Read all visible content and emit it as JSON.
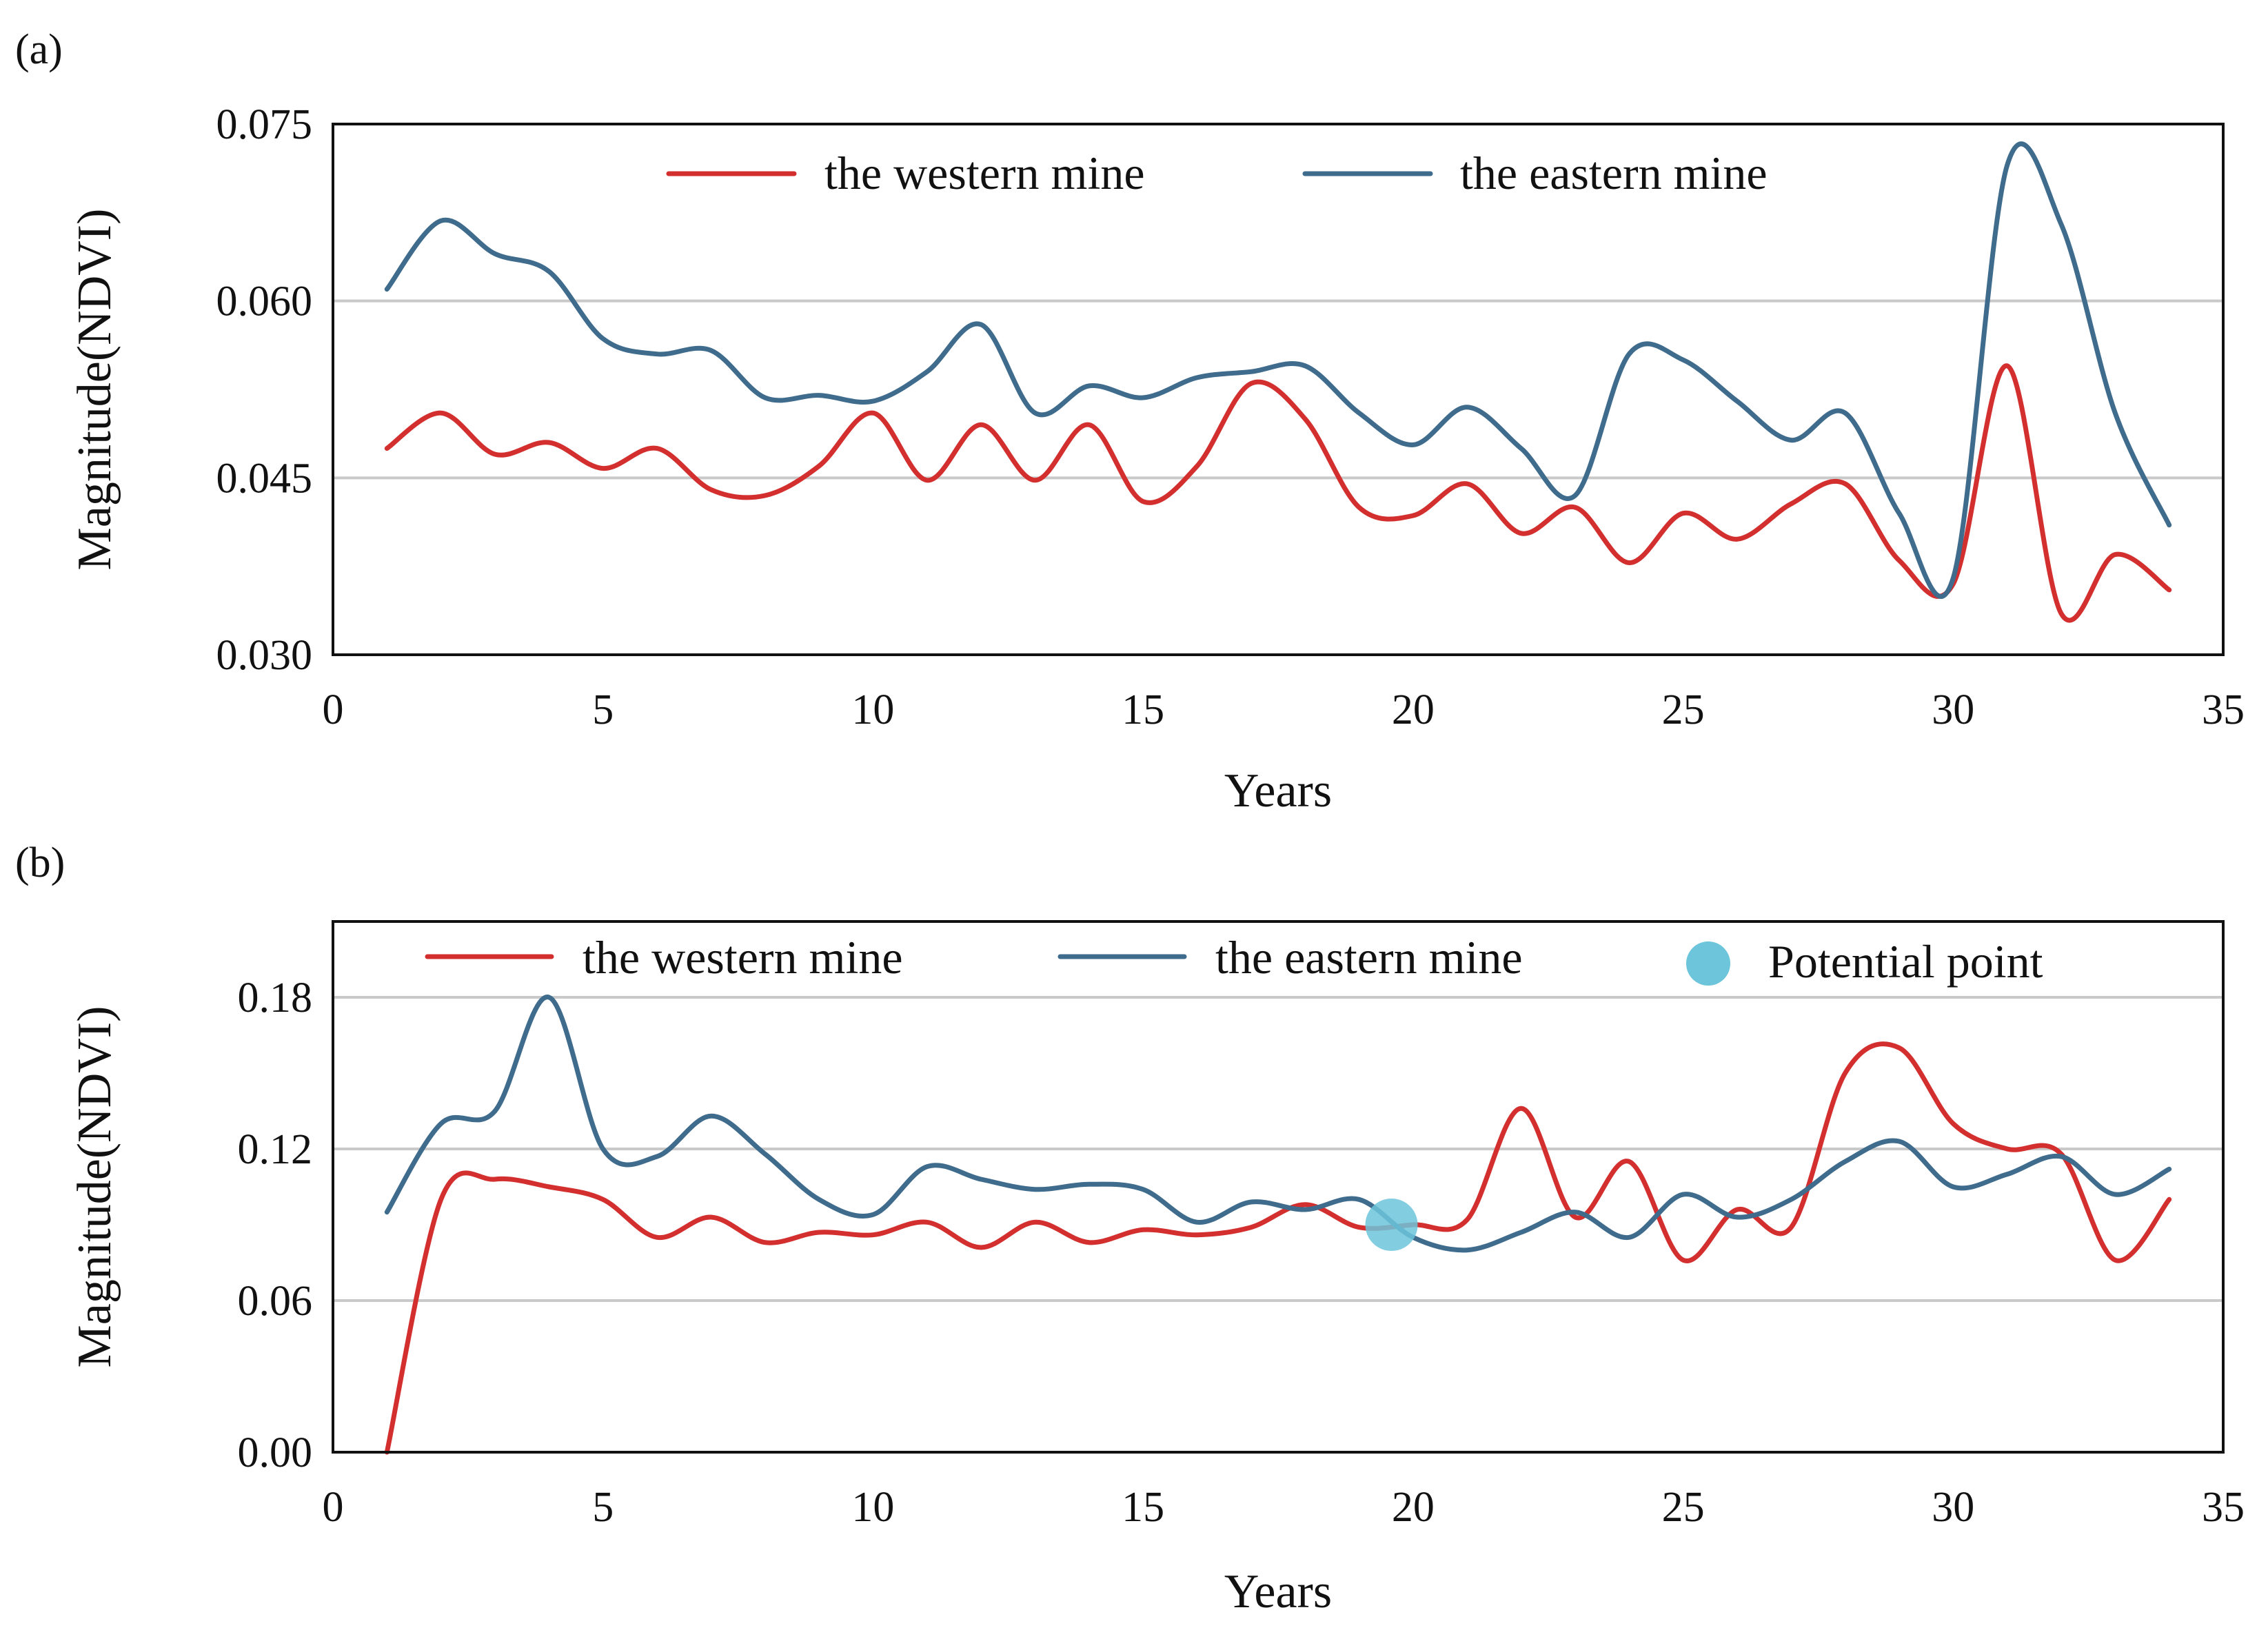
{
  "colors": {
    "western": "#d32f2f",
    "eastern": "#3f6b8c",
    "potential": "#6cc5da"
  },
  "chart_data": [
    {
      "type": "line",
      "panel_label": "(a)",
      "xlabel": "Years",
      "ylabel": "Magnitude(NDVI)",
      "xlim": [
        0,
        35
      ],
      "ylim": [
        0.03,
        0.075
      ],
      "xticks": [
        0,
        5,
        10,
        15,
        20,
        25,
        30,
        35
      ],
      "xtick_labels": [
        "0",
        "5",
        "10",
        "15",
        "20",
        "25",
        "30",
        "35"
      ],
      "yticks": [
        0.03,
        0.045,
        0.06,
        0.075
      ],
      "ytick_labels": [
        "0.030",
        "0.045",
        "0.060",
        "0.075"
      ],
      "grid": true,
      "legend_position": "top",
      "series": [
        {
          "name": "the western mine",
          "color_key": "western",
          "x": [
            1,
            2,
            3,
            4,
            5,
            6,
            7,
            8,
            9,
            10,
            11,
            12,
            13,
            14,
            15,
            16,
            17,
            18,
            19,
            20,
            21,
            22,
            23,
            24,
            25,
            26,
            27,
            28,
            29,
            30,
            31,
            32,
            33,
            34
          ],
          "y": [
            0.0475,
            0.0505,
            0.047,
            0.048,
            0.0458,
            0.0475,
            0.044,
            0.0435,
            0.046,
            0.0505,
            0.0448,
            0.0495,
            0.0448,
            0.0495,
            0.043,
            0.046,
            0.053,
            0.05,
            0.0425,
            0.0418,
            0.0445,
            0.0403,
            0.0425,
            0.0378,
            0.042,
            0.0398,
            0.0428,
            0.0445,
            0.038,
            0.036,
            0.0545,
            0.0335,
            0.0385,
            0.0355
          ]
        },
        {
          "name": "the eastern mine",
          "color_key": "eastern",
          "x": [
            1,
            2,
            3,
            4,
            5,
            6,
            7,
            8,
            9,
            10,
            11,
            12,
            13,
            14,
            15,
            16,
            17,
            18,
            19,
            20,
            21,
            22,
            23,
            24,
            25,
            26,
            27,
            28,
            29,
            30,
            31,
            32,
            33,
            34
          ],
          "y": [
            0.061,
            0.0668,
            0.064,
            0.0625,
            0.0568,
            0.0555,
            0.0558,
            0.0518,
            0.052,
            0.0515,
            0.054,
            0.058,
            0.0505,
            0.0528,
            0.0518,
            0.0535,
            0.054,
            0.0545,
            0.0505,
            0.0478,
            0.051,
            0.0475,
            0.0435,
            0.0555,
            0.055,
            0.0515,
            0.0482,
            0.0505,
            0.042,
            0.0365,
            0.0715,
            0.0665,
            0.0505,
            0.041
          ]
        }
      ]
    },
    {
      "type": "line",
      "panel_label": "(b)",
      "xlabel": "Years",
      "ylabel": "Magnitude(NDVI)",
      "xlim": [
        0,
        35
      ],
      "ylim": [
        0.0,
        0.21
      ],
      "xticks": [
        0,
        5,
        10,
        15,
        20,
        25,
        30,
        35
      ],
      "xtick_labels": [
        "0",
        "5",
        "10",
        "15",
        "20",
        "25",
        "30",
        "35"
      ],
      "yticks": [
        0.0,
        0.06,
        0.12,
        0.18
      ],
      "ytick_labels": [
        "0.00",
        "0.06",
        "0.12",
        "0.18"
      ],
      "grid": true,
      "legend_position": "top",
      "series": [
        {
          "name": "the western mine",
          "color_key": "western",
          "x": [
            1,
            2,
            3,
            4,
            5,
            6,
            7,
            8,
            9,
            10,
            11,
            12,
            13,
            14,
            15,
            16,
            17,
            18,
            19,
            20,
            21,
            22,
            23,
            24,
            25,
            26,
            27,
            28,
            29,
            30,
            31,
            32,
            33,
            34
          ],
          "y": [
            0.0,
            0.1,
            0.108,
            0.105,
            0.1,
            0.085,
            0.093,
            0.083,
            0.087,
            0.086,
            0.091,
            0.081,
            0.091,
            0.083,
            0.088,
            0.086,
            0.089,
            0.098,
            0.089,
            0.09,
            0.092,
            0.136,
            0.093,
            0.115,
            0.076,
            0.096,
            0.089,
            0.15,
            0.16,
            0.13,
            0.12,
            0.118,
            0.076,
            0.1
          ]
        },
        {
          "name": "the eastern mine",
          "color_key": "eastern",
          "x": [
            1,
            2,
            3,
            4,
            5,
            6,
            7,
            8,
            9,
            10,
            11,
            12,
            13,
            14,
            15,
            16,
            17,
            18,
            19,
            20,
            21,
            22,
            23,
            24,
            25,
            26,
            27,
            28,
            29,
            30,
            31,
            32,
            33,
            34
          ],
          "y": [
            0.095,
            0.13,
            0.135,
            0.18,
            0.12,
            0.117,
            0.133,
            0.118,
            0.1,
            0.094,
            0.113,
            0.108,
            0.104,
            0.106,
            0.104,
            0.091,
            0.099,
            0.096,
            0.1,
            0.085,
            0.08,
            0.087,
            0.095,
            0.085,
            0.102,
            0.093,
            0.1,
            0.115,
            0.123,
            0.105,
            0.11,
            0.117,
            0.102,
            0.112
          ]
        }
      ],
      "points": [
        {
          "name": "Potential point",
          "color_key": "potential",
          "x": 19.6,
          "y": 0.09
        }
      ]
    }
  ]
}
